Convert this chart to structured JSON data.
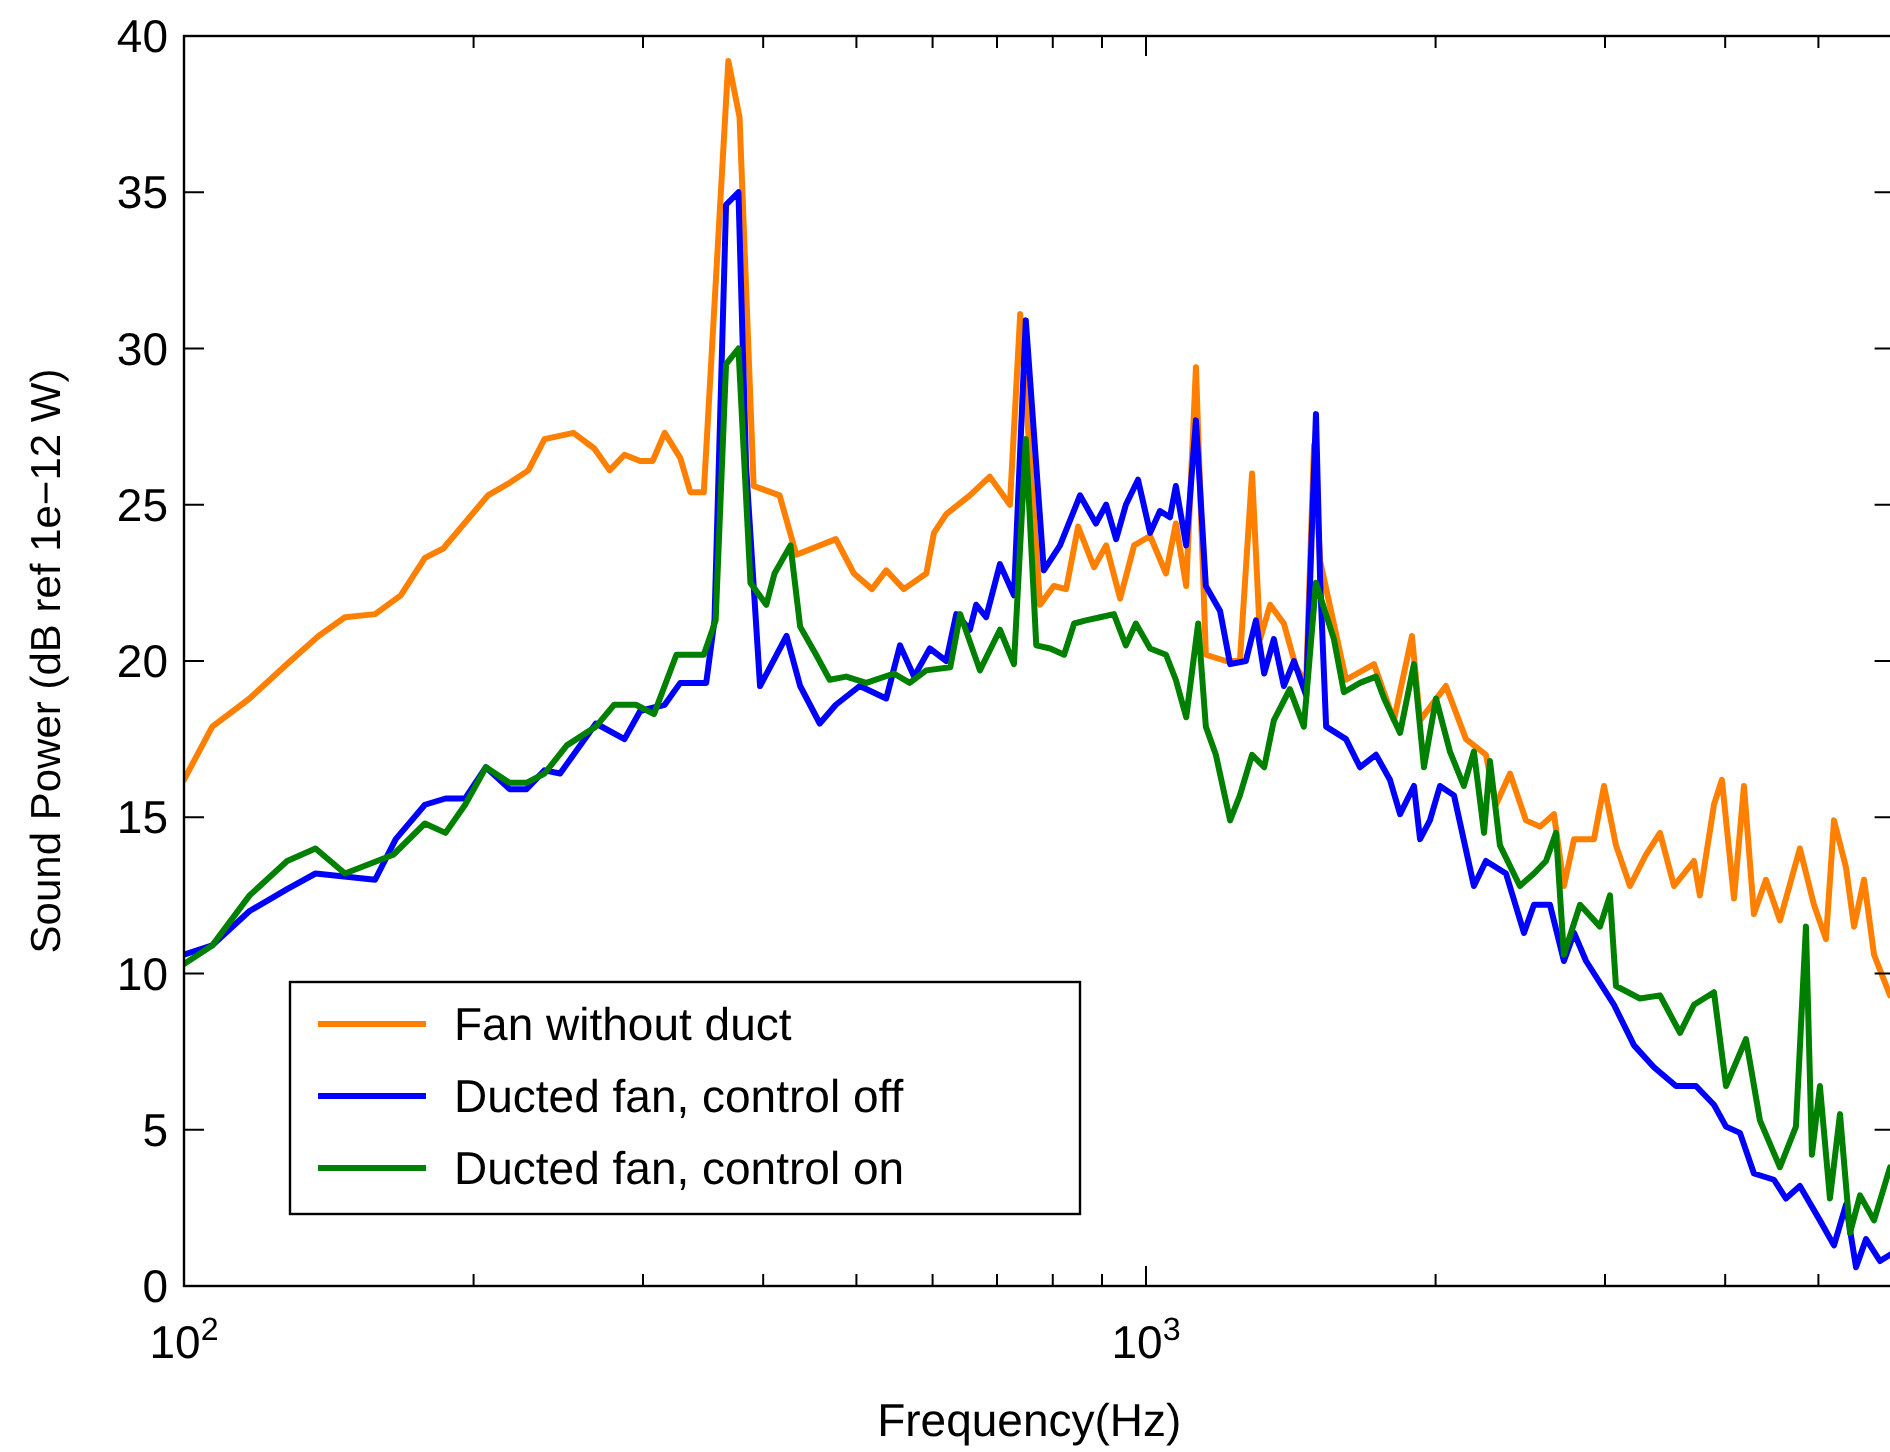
{
  "chart_data": {
    "type": "line",
    "xlabel": "Frequency(Hz)",
    "ylabel": "Sound Power (dB ref 1e−12 W)",
    "log": "x",
    "xlim": [
      100,
      6000
    ],
    "ylim": [
      0,
      40
    ],
    "xticks": [
      {
        "value": 100,
        "label": "10$^{2}$"
      },
      {
        "value": 200,
        "label": null
      },
      {
        "value": 300,
        "label": null
      },
      {
        "value": 400,
        "label": null
      },
      {
        "value": 500,
        "label": null
      },
      {
        "value": 600,
        "label": null
      },
      {
        "value": 700,
        "label": null
      },
      {
        "value": 800,
        "label": null
      },
      {
        "value": 900,
        "label": null
      },
      {
        "value": 1000,
        "label": "10$^{3}$"
      },
      {
        "value": 2000,
        "label": null
      },
      {
        "value": 3000,
        "label": null
      },
      {
        "value": 4000,
        "label": null
      },
      {
        "value": 5000,
        "label": null
      }
    ],
    "yticks": [
      0,
      5,
      10,
      15,
      20,
      25,
      30,
      35,
      40
    ],
    "grid": false,
    "legend": "bottom left",
    "line_style": "solid",
    "marker": "none",
    "series": [
      {
        "name": "Fan without duct",
        "color": "#ff8000",
        "x": [
          100,
          107,
          117,
          129,
          138,
          147,
          158,
          168,
          178,
          186,
          207,
          218,
          228,
          237,
          254,
          267,
          277,
          287,
          298,
          307,
          316,
          328,
          336,
          347,
          368,
          378,
          391,
          416,
          433,
          476,
          497,
          519,
          537,
          560,
          591,
          602,
          620,
          656,
          688,
          722,
          740,
          758,
          776,
          802,
          826,
          850,
          883,
          909,
          940,
          972,
          1010,
          1049,
          1074,
          1101,
          1127,
          1154,
          1211,
          1252,
          1289,
          1314,
          1346,
          1391,
          1432,
          1467,
          1495,
          1517,
          1614,
          1726,
          1810,
          1890,
          1927,
          2050,
          2151,
          2256,
          2311,
          2390,
          2483,
          2568,
          2655,
          2719,
          2786,
          2922,
          2993,
          3080,
          3185,
          3309,
          3422,
          3539,
          3712,
          3765,
          3894,
          3969,
          4085,
          4184,
          4285,
          4410,
          4560,
          4783,
          4947,
          5091,
          5190,
          5341,
          5445,
          5577,
          5712,
          5935
        ],
        "values": [
          16.2,
          17.9,
          18.8,
          20.0,
          20.8,
          21.4,
          21.5,
          22.1,
          23.3,
          23.6,
          25.3,
          25.7,
          26.1,
          27.1,
          27.3,
          26.8,
          26.1,
          26.6,
          26.4,
          26.4,
          27.3,
          26.5,
          25.4,
          25.4,
          39.2,
          37.4,
          25.6,
          25.3,
          23.4,
          23.9,
          22.8,
          22.3,
          22.9,
          22.3,
          22.8,
          24.1,
          24.7,
          25.3,
          25.9,
          25.0,
          31.1,
          26.4,
          21.8,
          22.4,
          22.3,
          24.3,
          23.0,
          23.7,
          22.0,
          23.7,
          24.0,
          22.8,
          24.4,
          22.4,
          29.4,
          20.2,
          20.0,
          20.0,
          26.0,
          20.7,
          21.8,
          21.2,
          19.8,
          19.3,
          26.9,
          23.2,
          19.4,
          19.9,
          18.1,
          20.8,
          18.1,
          19.2,
          17.5,
          17.0,
          15.4,
          16.4,
          14.9,
          14.7,
          15.1,
          12.8,
          14.3,
          14.3,
          16.0,
          14.1,
          12.8,
          13.8,
          14.5,
          12.8,
          13.6,
          12.5,
          15.4,
          16.2,
          12.4,
          16.0,
          11.9,
          13.0,
          11.7,
          14.0,
          12.2,
          11.1,
          14.9,
          13.4,
          11.5,
          13.0,
          10.6,
          9.3
        ]
      },
      {
        "name": "Ducted fan, control off",
        "color": "#0000ff",
        "x": [
          100,
          107,
          117,
          128,
          137,
          158,
          166,
          178,
          187,
          196,
          206,
          218,
          227,
          237,
          246,
          268,
          287,
          298,
          316,
          328,
          349,
          356,
          366,
          377,
          384,
          397,
          423,
          437,
          458,
          476,
          504,
          537,
          555,
          574,
          596,
          620,
          635,
          656,
          666,
          682,
          705,
          729,
          750,
          783,
          814,
          854,
          887,
          909,
          931,
          953,
          981,
          1010,
          1034,
          1059,
          1074,
          1101,
          1127,
          1154,
          1194,
          1223,
          1270,
          1301,
          1327,
          1358,
          1391,
          1425,
          1467,
          1502,
          1517,
          1539,
          1614,
          1669,
          1734,
          1793,
          1837,
          1899,
          1927,
          1973,
          2021,
          2090,
          2192,
          2256,
          2367,
          2471,
          2531,
          2630,
          2719,
          2786,
          2867,
          3065,
          3216,
          3373,
          3556,
          3730,
          3894,
          4008,
          4144,
          4285,
          4495,
          4626,
          4783,
          5018,
          5190,
          5341,
          5471,
          5604,
          5794,
          5935
        ],
        "values": [
          10.6,
          10.9,
          12.0,
          12.7,
          13.2,
          13.0,
          14.3,
          15.4,
          15.6,
          15.6,
          16.6,
          15.9,
          15.9,
          16.5,
          16.4,
          18.0,
          17.5,
          18.4,
          18.6,
          19.3,
          19.3,
          21.3,
          34.6,
          35.0,
          26.2,
          19.2,
          20.8,
          19.2,
          18.0,
          18.6,
          19.2,
          18.8,
          20.5,
          19.5,
          20.4,
          20.0,
          21.5,
          21.0,
          21.8,
          21.4,
          23.1,
          22.1,
          30.9,
          22.9,
          23.7,
          25.3,
          24.4,
          25.0,
          23.9,
          25.0,
          25.8,
          24.1,
          24.8,
          24.6,
          25.6,
          23.7,
          27.7,
          22.4,
          21.6,
          19.9,
          20.0,
          21.3,
          19.6,
          20.7,
          19.2,
          20.0,
          18.9,
          27.9,
          22.6,
          17.9,
          17.5,
          16.6,
          17.0,
          16.2,
          15.1,
          16.0,
          14.3,
          14.9,
          16.0,
          15.7,
          12.8,
          13.6,
          13.2,
          11.3,
          12.2,
          12.2,
          10.4,
          11.3,
          10.4,
          9.0,
          7.7,
          7.0,
          6.4,
          6.4,
          5.8,
          5.1,
          4.9,
          3.6,
          3.4,
          2.8,
          3.2,
          2.1,
          1.3,
          2.6,
          0.6,
          1.5,
          0.8,
          1.0
        ]
      },
      {
        "name": "Ducted fan, control on",
        "color": "#008000",
        "x": [
          100,
          107,
          117,
          128,
          137,
          147,
          165,
          178,
          187,
          196,
          206,
          218,
          227,
          237,
          250,
          268,
          280,
          295,
          308,
          325,
          347,
          357,
          366,
          377,
          388,
          403,
          411,
          427,
          437,
          454,
          469,
          488,
          512,
          547,
          568,
          591,
          626,
          641,
          672,
          705,
          729,
          750,
          769,
          795,
          822,
          842,
          866,
          896,
          926,
          953,
          976,
          1010,
          1049,
          1074,
          1101,
          1133,
          1154,
          1182,
          1223,
          1252,
          1289,
          1327,
          1358,
          1411,
          1459,
          1502,
          1568,
          1606,
          1669,
          1734,
          1768,
          1837,
          1899,
          1945,
          2002,
          2070,
          2140,
          2192,
          2246,
          2278,
          2333,
          2447,
          2531,
          2605,
          2668,
          2719,
          2826,
          2964,
          3036,
          3080,
          3262,
          3422,
          3590,
          3712,
          3894,
          4008,
          4204,
          4347,
          4560,
          4738,
          4853,
          4923,
          5018,
          5140,
          5265,
          5393,
          5524,
          5712,
          5935
        ],
        "values": [
          10.3,
          10.9,
          12.5,
          13.6,
          14.0,
          13.2,
          13.8,
          14.8,
          14.5,
          15.4,
          16.6,
          16.1,
          16.1,
          16.4,
          17.3,
          17.9,
          18.6,
          18.6,
          18.3,
          20.2,
          20.2,
          21.3,
          29.5,
          30.0,
          22.5,
          21.8,
          22.8,
          23.7,
          21.1,
          20.2,
          19.4,
          19.5,
          19.3,
          19.6,
          19.3,
          19.7,
          19.8,
          21.5,
          19.7,
          21.0,
          19.9,
          27.1,
          20.5,
          20.4,
          20.2,
          21.2,
          21.3,
          21.4,
          21.5,
          20.5,
          21.2,
          20.4,
          20.2,
          19.4,
          18.2,
          21.2,
          17.9,
          17.0,
          14.9,
          15.7,
          17.0,
          16.6,
          18.1,
          19.1,
          17.9,
          22.5,
          20.7,
          19.0,
          19.3,
          19.5,
          18.8,
          17.7,
          19.9,
          16.6,
          18.8,
          17.1,
          16.0,
          17.1,
          14.5,
          16.8,
          14.1,
          12.8,
          13.2,
          13.6,
          14.5,
          10.6,
          12.2,
          11.5,
          12.5,
          9.6,
          9.2,
          9.3,
          8.1,
          9.0,
          9.4,
          6.4,
          7.9,
          5.3,
          3.8,
          5.1,
          11.5,
          4.2,
          6.4,
          2.8,
          5.5,
          1.7,
          2.9,
          2.1,
          3.8
        ]
      }
    ]
  }
}
